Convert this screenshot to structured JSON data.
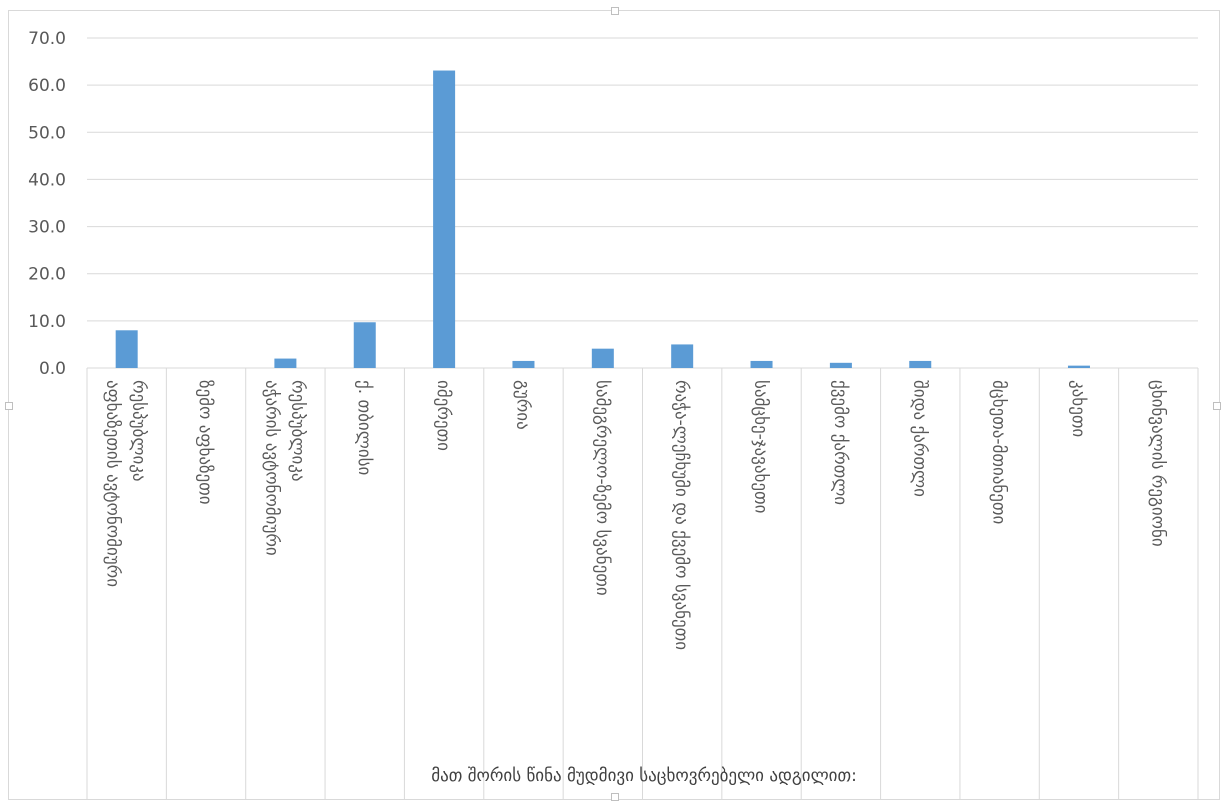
{
  "chart_data": {
    "type": "bar",
    "categories": [
      "აფხაზეთის ავტონომიური რესპუბლიკა",
      "ზემო აფხაზეთი",
      "აჭარის ავტონომიური რესპუბლიკა",
      "ქ. თბილისი",
      "იმერეთი",
      "გურია",
      "სამეგრელო-ზემო სვანეთი",
      "რაჭა-ლეჩხუმი და ქვემო სვანეთი",
      "სამცხე-ჯავახეთი",
      "ქვემო ქართლი",
      "შიდა ქართლი",
      "მცხეთა-მთიანეთი",
      "კახეთი",
      "ცხინვალის რეგიონი"
    ],
    "category_lines": [
      [
        "აფხაზეთის ავტონომიური",
        "რესპუბლიკა"
      ],
      [
        "ზემო აფხაზეთი"
      ],
      [
        "აჭარის ავტონომიური",
        "რესპუბლიკა"
      ],
      [
        "ქ. თბილისი"
      ],
      [
        "იმერეთი"
      ],
      [
        "გურია"
      ],
      [
        "სამეგრელო-ზემო სვანეთი"
      ],
      [
        "რაჭა-ლეჩხუმი და ქვემო სვანეთი"
      ],
      [
        "სამცხე-ჯავახეთი"
      ],
      [
        "ქვემო ქართლი"
      ],
      [
        "შიდა ქართლი"
      ],
      [
        "მცხეთა-მთიანეთი"
      ],
      [
        "კახეთი"
      ],
      [
        "ცხინვალის რეგიონი"
      ]
    ],
    "values": [
      8.0,
      0.0,
      2.0,
      9.7,
      63.1,
      1.5,
      4.1,
      5.0,
      1.5,
      1.1,
      1.5,
      0.0,
      0.5,
      0.0
    ],
    "title": "",
    "xlabel": "მათ შორის წინა მუდმივი საცხოვრებელი ადგილით:",
    "ylabel": "",
    "ylim": [
      0,
      70
    ],
    "yticks": [
      "0.0",
      "10.0",
      "20.0",
      "30.0",
      "40.0",
      "50.0",
      "60.0",
      "70.0"
    ],
    "grid": true,
    "legend": "none",
    "bar_color": "#5b9bd5",
    "grid_color": "#d9d9d9",
    "text_color": "#595959"
  }
}
